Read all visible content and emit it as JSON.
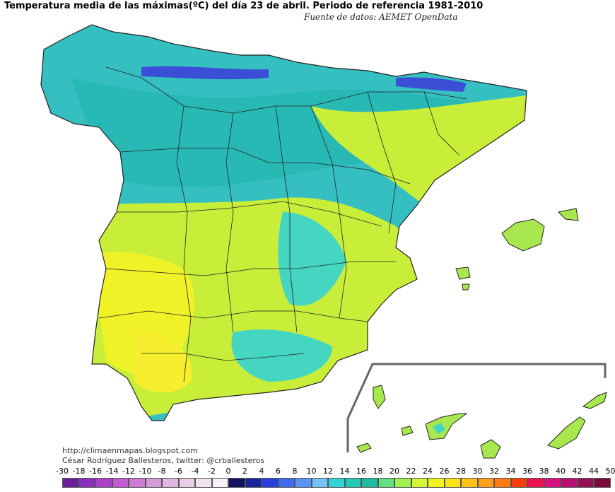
{
  "title": "Temperatura media de las máximas(ºC) del día 23 de abril. Periodo de referencia 1981-2010",
  "source": "Fuente de datos: AEMET OpenData",
  "credits": {
    "blog": "http://climaenmapas.blogspot.com",
    "author": "César Rodríguez Ballesteros, twitter: @crballesteros"
  },
  "legend": {
    "labels": [
      "-30",
      "-18",
      "-16",
      "-14",
      "-12",
      "-10",
      "-8",
      "-6",
      "-4",
      "-2",
      "0",
      "2",
      "4",
      "6",
      "8",
      "10",
      "12",
      "14",
      "16",
      "18",
      "20",
      "22",
      "24",
      "26",
      "28",
      "30",
      "32",
      "34",
      "36",
      "38",
      "40",
      "42",
      "44",
      "50"
    ],
    "colors": [
      "#6a1f9e",
      "#8b2dbf",
      "#a843c9",
      "#c05bd0",
      "#cc7ad6",
      "#d69ad8",
      "#deb6df",
      "#e8cfe6",
      "#efe4ee",
      "#f6f2f6",
      "#11135f",
      "#1a24a0",
      "#2a3fe0",
      "#3d6cf0",
      "#5a95f5",
      "#74c2f7",
      "#30d6d6",
      "#25c9b8",
      "#1ebba0",
      "#60e080",
      "#a0f050",
      "#d6f535",
      "#f3f321",
      "#ffe41a",
      "#ffc21a",
      "#ff9f1a",
      "#ff7a10",
      "#ff3b0a",
      "#ee1150",
      "#d81180",
      "#b5106f",
      "#951055",
      "#7a0c3c"
    ]
  },
  "map_colors": {
    "north": "#35bfc0",
    "north_dark": "#1ea6a8",
    "mid": "#29b9b5",
    "highland": "#45d6c2",
    "south": "#c9ee3a",
    "southwest": "#f0f228",
    "hot": "#f6ee2e",
    "coast": "#a8e84e",
    "cold": "#3a4fd6",
    "border": "#222222",
    "island_box": "#666666"
  }
}
